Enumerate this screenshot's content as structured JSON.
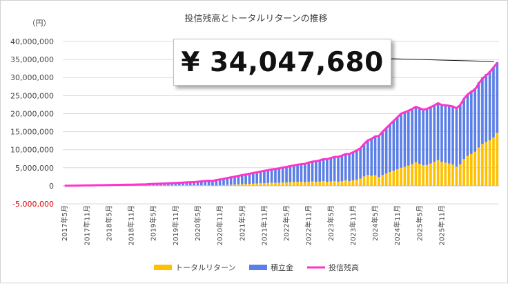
{
  "chart_data": {
    "type": "bar",
    "title": "投信残高とトータルリターンの推移",
    "unit_label": "（円）",
    "callout": "¥ 34,047,680",
    "ylim": [
      -5000000,
      40000000
    ],
    "yticks": [
      {
        "v": 40000000,
        "label": "40,000,000"
      },
      {
        "v": 35000000,
        "label": "35,000,000"
      },
      {
        "v": 30000000,
        "label": "30,000,000"
      },
      {
        "v": 25000000,
        "label": "25,000,000"
      },
      {
        "v": 20000000,
        "label": "20,000,000"
      },
      {
        "v": 15000000,
        "label": "15,000,000"
      },
      {
        "v": 10000000,
        "label": "10,000,000"
      },
      {
        "v": 5000000,
        "label": "5,000,000"
      },
      {
        "v": 0,
        "label": "0"
      },
      {
        "v": -5000000,
        "label": "-5,000,000"
      }
    ],
    "x_tick_labels": [
      "2017年5月",
      "2017年11月",
      "2018年5月",
      "2018年11月",
      "2019年5月",
      "2019年11月",
      "2020年5月",
      "2020年11月",
      "2021年5月",
      "2021年11月",
      "2022年5月",
      "2022年11月",
      "2023年5月",
      "2023年11月",
      "2024年5月",
      "2024年11月",
      "2025年5月",
      "2025年11月"
    ],
    "legend": [
      {
        "name": "トータルリターン",
        "color": "#ffc000",
        "kind": "bar"
      },
      {
        "name": "積立金",
        "color": "#5b7fe8",
        "kind": "bar"
      },
      {
        "name": "投信残高",
        "color": "#ff33cc",
        "kind": "line"
      }
    ],
    "series": [
      {
        "name": "トータルリターン",
        "color": "#ffc000",
        "values": [
          0,
          0,
          0,
          2000,
          3000,
          5000,
          5000,
          8000,
          10000,
          8000,
          12000,
          15000,
          20000,
          25000,
          28000,
          25000,
          30000,
          35000,
          35000,
          40000,
          45000,
          50000,
          40000,
          55000,
          60000,
          65000,
          70000,
          70000,
          80000,
          90000,
          100000,
          110000,
          120000,
          130000,
          140000,
          130000,
          140000,
          140000,
          150000,
          120000,
          -50000,
          80000,
          150000,
          200000,
          250000,
          300000,
          350000,
          400000,
          450000,
          500000,
          550000,
          600000,
          650000,
          700000,
          750000,
          800000,
          850000,
          800000,
          850000,
          900000,
          950000,
          1000000,
          1050000,
          1100000,
          1100000,
          1000000,
          1150000,
          1200000,
          1100000,
          1150000,
          1300000,
          1100000,
          1200000,
          1300000,
          1150000,
          1250000,
          1500000,
          1300000,
          1500000,
          1700000,
          2000000,
          2600000,
          3000000,
          2800000,
          2900000,
          2400000,
          3000000,
          3400000,
          3800000,
          4200000,
          4600000,
          5000000,
          5300000,
          5600000,
          6000000,
          6500000,
          6100000,
          5700000,
          5800000,
          6200000,
          6600000,
          7100000,
          6600000,
          6400000,
          6200000,
          5900000,
          5300000,
          6000000,
          7400000,
          8300000,
          8800000,
          9400000,
          10600000,
          11600000,
          12100000,
          12600000,
          13400000,
          14700000
        ]
      },
      {
        "name": "積立金",
        "color": "#5b7fe8",
        "values": [
          15000,
          30000,
          45000,
          60000,
          75000,
          90000,
          105000,
          120000,
          135000,
          150000,
          165000,
          180000,
          195000,
          210000,
          225000,
          240000,
          255000,
          270000,
          285000,
          300000,
          320000,
          340000,
          380000,
          420000,
          460000,
          500000,
          540000,
          580000,
          620000,
          660000,
          700000,
          740000,
          780000,
          820000,
          860000,
          900000,
          1000000,
          1100000,
          1200000,
          1300000,
          1400000,
          1500000,
          1600000,
          1750000,
          1900000,
          2050000,
          2200000,
          2350000,
          2500000,
          2650000,
          2800000,
          2950000,
          3100000,
          3250000,
          3400000,
          3550000,
          3700000,
          3850000,
          4000000,
          4150000,
          4300000,
          4450000,
          4600000,
          4750000,
          4900000,
          5100000,
          5300000,
          5500000,
          5700000,
          5900000,
          6100000,
          6300000,
          6500000,
          6700000,
          6900000,
          7100000,
          7300000,
          7500000,
          7800000,
          8100000,
          8400000,
          9000000,
          9600000,
          10200000,
          10800000,
          11400000,
          12000000,
          12600000,
          13200000,
          13800000,
          14400000,
          15000000,
          15100000,
          15200000,
          15300000,
          15400000,
          15400000,
          15400000,
          15500000,
          15600000,
          15700000,
          15800000,
          15800000,
          15900000,
          16000000,
          16100000,
          16200000,
          16400000,
          16700000,
          17000000,
          17300000,
          17700000,
          18100000,
          18500000,
          18900000,
          19200000,
          19400000,
          19600000
        ]
      },
      {
        "name": "投信残高",
        "color": "#ff33cc",
        "values": [
          15000,
          30000,
          45000,
          62000,
          78000,
          95000,
          110000,
          128000,
          145000,
          158000,
          177000,
          195000,
          215000,
          235000,
          253000,
          265000,
          285000,
          305000,
          320000,
          340000,
          365000,
          390000,
          420000,
          475000,
          520000,
          565000,
          610000,
          650000,
          700000,
          750000,
          800000,
          850000,
          900000,
          950000,
          1000000,
          1030000,
          1140000,
          1240000,
          1350000,
          1420000,
          1350000,
          1580000,
          1750000,
          1950000,
          2150000,
          2350000,
          2550000,
          2750000,
          2950000,
          3150000,
          3350000,
          3550000,
          3750000,
          3950000,
          4150000,
          4350000,
          4550000,
          4650000,
          4850000,
          5050000,
          5250000,
          5450000,
          5650000,
          5850000,
          6000000,
          6100000,
          6450000,
          6700000,
          6800000,
          7050000,
          7400000,
          7400000,
          7700000,
          8000000,
          8050000,
          8350000,
          8800000,
          8800000,
          9300000,
          9800000,
          10400000,
          11600000,
          12600000,
          13000000,
          13700000,
          13800000,
          15000000,
          16000000,
          17000000,
          18000000,
          19000000,
          20000000,
          20400000,
          20800000,
          21300000,
          21900000,
          21500000,
          21100000,
          21300000,
          21800000,
          22300000,
          22900000,
          22400000,
          22300000,
          22200000,
          22000000,
          21500000,
          22400000,
          24100000,
          25300000,
          26100000,
          26700000,
          28300000,
          29700000,
          30600000,
          31500000,
          32800000,
          34047680
        ]
      }
    ]
  }
}
